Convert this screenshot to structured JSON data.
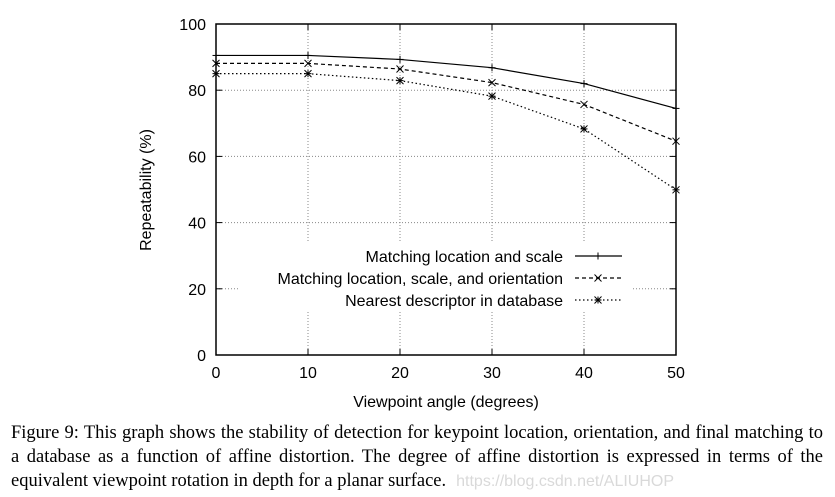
{
  "chart_data": {
    "type": "line",
    "title": "",
    "xlabel": "Viewpoint angle (degrees)",
    "ylabel": "Repeatability (%)",
    "xlim": [
      0,
      50
    ],
    "ylim": [
      0,
      100
    ],
    "x": [
      0,
      10,
      20,
      30,
      40,
      50
    ],
    "xticks": [
      0,
      10,
      20,
      30,
      40,
      50
    ],
    "yticks": [
      0,
      20,
      40,
      60,
      80,
      100
    ],
    "grid": true,
    "legend_position": "lower right (inside plot)",
    "series": [
      {
        "name": "Matching location and scale",
        "style": "solid",
        "marker": "+",
        "values": [
          90.5,
          90.5,
          89.3,
          86.8,
          82.0,
          74.5
        ]
      },
      {
        "name": "Matching location, scale, and orientation",
        "style": "dashed",
        "marker": "x",
        "values": [
          88.1,
          88.1,
          86.4,
          82.3,
          75.7,
          64.6
        ]
      },
      {
        "name": "Nearest descriptor in database",
        "style": "dotted",
        "marker": "*",
        "values": [
          85.0,
          85.0,
          82.9,
          78.2,
          68.3,
          49.9
        ]
      }
    ]
  },
  "caption": {
    "text": "Figure 9: This graph shows the stability of detection for keypoint location, orientation, and final matching to a database as a function of affine distortion. The degree of affine distortion is expressed in terms of the equivalent viewpoint rotation in depth for a planar surface.",
    "watermark": "https://blog.csdn.net/ALIUHOP"
  }
}
